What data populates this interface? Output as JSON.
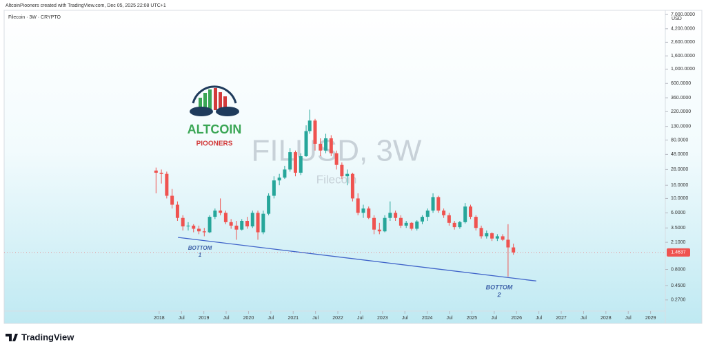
{
  "header": {
    "attribution": "AltcoinPiooners created with TradingView.com, Dec 05, 2025 22:08 UTC+1",
    "symbol": "Filecoin · 3W · CRYPTO"
  },
  "logo": {
    "title": "ALTCOIN",
    "subtitle": "PIOONERS"
  },
  "footer": {
    "brand": "TradingView"
  },
  "chart_data": {
    "type": "candlestick",
    "log_scale": true,
    "y_axis_label": "USD",
    "watermark": {
      "title": "FILUSD, 3W",
      "subtitle": "Filecoin"
    },
    "annotations": [
      [
        "BOTTOM",
        "1"
      ],
      [
        "BOTTOM",
        "2"
      ]
    ],
    "up_color": "#26a69a",
    "down_color": "#ef5350",
    "last_price": 1.4637,
    "trendline": {
      "x": [
        2018.42,
        2026.44
      ],
      "y": [
        2.5,
        0.53
      ],
      "color": "#3f63c9"
    },
    "xlim": [
      2014.53,
      2029.33
    ],
    "xticks": [
      2018,
      {
        "value": 2018.5,
        "label": "Jul"
      },
      2019,
      {
        "value": 2019.5,
        "label": "Jul"
      },
      2020,
      {
        "value": 2020.5,
        "label": "Jul"
      },
      2021,
      {
        "value": 2021.5,
        "label": "Jul"
      },
      2022,
      {
        "value": 2022.5,
        "label": "Jul"
      },
      2023,
      {
        "value": 2023.5,
        "label": "Jul"
      },
      2024,
      {
        "value": 2024.5,
        "label": "Jul"
      },
      2025,
      {
        "value": 2025.5,
        "label": "Jul"
      },
      2026,
      {
        "value": 2026.5,
        "label": "Jul"
      },
      2027,
      {
        "value": 2027.5,
        "label": "Jul"
      },
      2028,
      {
        "value": 2028.5,
        "label": "Jul"
      },
      2029
    ],
    "ylim": [
      0.117,
      8100
    ],
    "yticks": [
      {
        "value": 0.27,
        "label": "0.2700"
      },
      {
        "value": 0.45,
        "label": "0.4500"
      },
      {
        "value": 0.8,
        "label": "0.8000"
      },
      {
        "value": 2.1,
        "label": "2.1000"
      },
      {
        "value": 3.5,
        "label": "3.5000"
      },
      {
        "value": 6,
        "label": "6.0000"
      },
      {
        "value": 10,
        "label": "10.0000"
      },
      {
        "value": 16,
        "label": "16.0000"
      },
      {
        "value": 28,
        "label": "28.0000"
      },
      {
        "value": 48,
        "label": "48.0000"
      },
      {
        "value": 80,
        "label": "80.0000"
      },
      {
        "value": 130,
        "label": "130.0000"
      },
      {
        "value": 220,
        "label": "220.0000"
      },
      {
        "value": 360,
        "label": "360.0000"
      },
      {
        "value": 600,
        "label": "600.0000"
      },
      {
        "value": 1000,
        "label": "1,000.0000"
      },
      {
        "value": 1600,
        "label": "1,600.0000"
      },
      {
        "value": 2600,
        "label": "2,600.0000"
      },
      {
        "value": 4200,
        "label": "4,200.0000"
      },
      {
        "value": 7000,
        "label": "7,000.0000"
      }
    ],
    "x": [
      2017.93,
      2018.05,
      2018.17,
      2018.29,
      2018.41,
      2018.53,
      2018.65,
      2018.77,
      2018.89,
      2019.01,
      2019.13,
      2019.25,
      2019.37,
      2019.49,
      2019.61,
      2019.73,
      2019.85,
      2019.97,
      2020.09,
      2020.21,
      2020.33,
      2020.45,
      2020.57,
      2020.69,
      2020.81,
      2020.93,
      2021.05,
      2021.17,
      2021.29,
      2021.37,
      2021.49,
      2021.61,
      2021.73,
      2021.85,
      2021.97,
      2022.09,
      2022.21,
      2022.33,
      2022.45,
      2022.57,
      2022.69,
      2022.81,
      2022.93,
      2023.05,
      2023.17,
      2023.29,
      2023.41,
      2023.53,
      2023.65,
      2023.77,
      2023.89,
      2024.01,
      2024.13,
      2024.25,
      2024.37,
      2024.49,
      2024.61,
      2024.73,
      2024.85,
      2024.97,
      2025.09,
      2025.21,
      2025.33,
      2025.45,
      2025.57,
      2025.69,
      2025.81,
      2025.93
    ],
    "open": [
      27,
      25,
      24,
      11,
      8,
      5,
      3.7,
      3.8,
      3.4,
      3.1,
      3.0,
      5.2,
      6.5,
      6.0,
      4.3,
      3.8,
      3.3,
      4.5,
      3.7,
      6.0,
      3.0,
      5.8,
      11,
      19,
      21,
      28,
      52,
      25,
      45,
      110,
      160,
      70,
      55,
      85,
      50,
      33,
      22,
      24,
      10,
      6,
      7,
      5,
      3.3,
      3.1,
      5.0,
      6,
      5,
      3.8,
      4.2,
      3.4,
      4.4,
      5.2,
      6.5,
      10.5,
      6.5,
      5.5,
      4.2,
      3.6,
      4.3,
      7.5,
      5.2,
      3.5,
      2.6,
      2.9,
      2.4,
      2.6,
      2.3,
      1.75
    ],
    "high": [
      30,
      28,
      26,
      14,
      9,
      5.5,
      4.3,
      4,
      3.8,
      3.5,
      5.5,
      7,
      10,
      6.5,
      4.8,
      4.5,
      4.8,
      5.2,
      6.5,
      6.5,
      6.5,
      12,
      22,
      24,
      32,
      60,
      55,
      50,
      135,
      236,
      170,
      85,
      100,
      95,
      55,
      36,
      28,
      25,
      12,
      8,
      7.5,
      5.5,
      4.2,
      5.5,
      9,
      6.5,
      5.5,
      4.5,
      4.3,
      4.6,
      5.5,
      7,
      12,
      11,
      7,
      6,
      4.5,
      4.5,
      8.5,
      8,
      5.5,
      3.8,
      3.2,
      3,
      2.8,
      2.8,
      4.0,
      2.0
    ],
    "low": [
      12,
      17,
      10,
      7,
      4.5,
      3.2,
      3.2,
      3,
      2.8,
      2.6,
      2.9,
      4.8,
      5.5,
      4,
      3.4,
      2.3,
      3.2,
      3.4,
      3.5,
      2.3,
      2.8,
      5.5,
      10,
      16,
      20,
      26,
      22,
      23,
      44,
      100,
      55,
      45,
      50,
      45,
      28,
      20,
      16,
      9,
      5.5,
      5,
      4.8,
      2.8,
      2.8,
      3,
      4.5,
      4.5,
      3.5,
      3.5,
      3.2,
      3.2,
      4,
      4.5,
      6,
      6,
      5,
      3.8,
      3.3,
      3.4,
      4.1,
      4.8,
      3.2,
      2.4,
      2.4,
      2.2,
      2.2,
      2.2,
      0.62,
      1.35
    ],
    "close": [
      25,
      24,
      11,
      8,
      5,
      3.7,
      3.8,
      3.4,
      3.1,
      3.0,
      5.2,
      6.5,
      6.0,
      4.3,
      3.8,
      3.3,
      4.5,
      3.7,
      6.0,
      3.0,
      5.8,
      11,
      19,
      21,
      28,
      52,
      25,
      45,
      110,
      160,
      70,
      55,
      85,
      50,
      33,
      22,
      24,
      10,
      6,
      7,
      5,
      3.3,
      3.1,
      5.0,
      6,
      5,
      3.8,
      4.2,
      3.4,
      4.4,
      5.2,
      6.5,
      10.5,
      6.5,
      5.5,
      4.2,
      3.6,
      4.3,
      7.5,
      5.2,
      3.5,
      2.6,
      2.9,
      2.4,
      2.6,
      2.3,
      1.75,
      1.4637
    ]
  }
}
